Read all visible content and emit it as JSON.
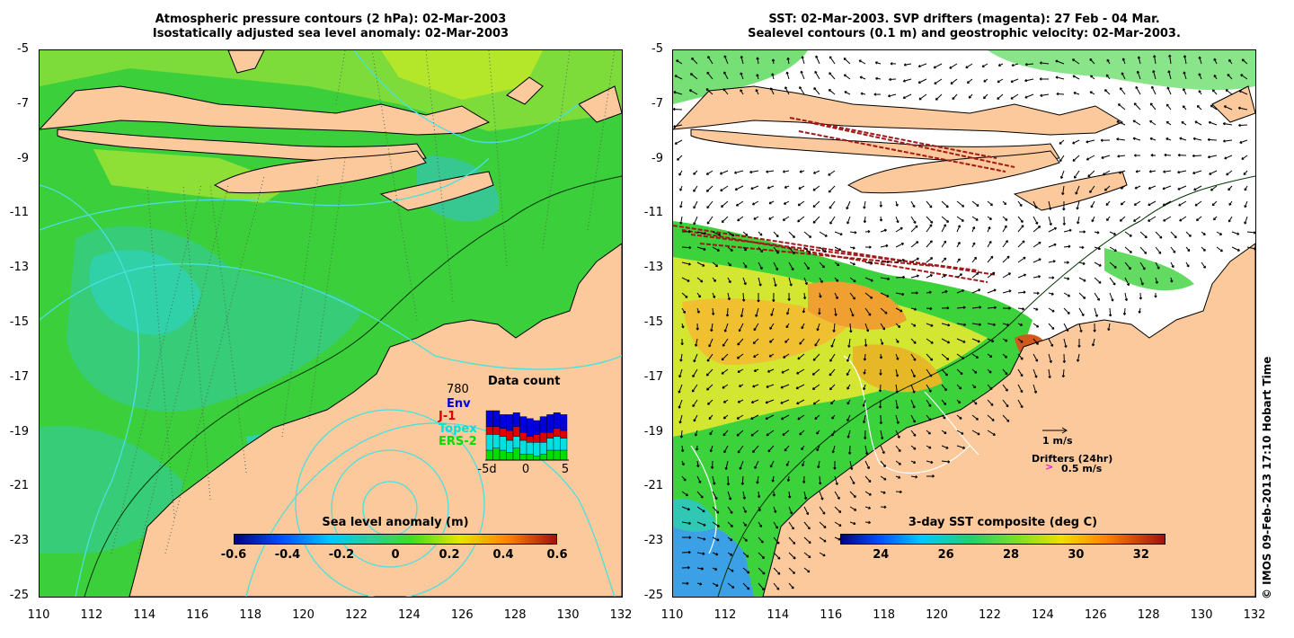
{
  "left": {
    "title_line1": "Atmospheric pressure contours (2 hPa): 02-Mar-2003",
    "title_line2": "Isostatically adjusted sea level anomaly: 02-Mar-2003",
    "colorbar_title": "Sea level anomaly (m)",
    "colorbar_ticks": [
      "-0.6",
      "-0.4",
      "-0.2",
      "0",
      "0.2",
      "0.4",
      "0.6"
    ],
    "data_count": {
      "title": "Data count",
      "total": "780",
      "legend": [
        "Env",
        "J-1",
        "Topex",
        "ERS-2"
      ],
      "legend_colors": [
        "#0000dd",
        "#dd0000",
        "#00e0e0",
        "#00dd00"
      ],
      "x_ticks": [
        "-5d",
        "0",
        "5"
      ],
      "bars": [
        [
          8,
          4,
          8,
          5
        ],
        [
          8,
          4,
          7,
          6
        ],
        [
          7,
          4,
          7,
          5
        ],
        [
          8,
          5,
          6,
          4
        ],
        [
          7,
          5,
          6,
          6
        ],
        [
          8,
          4,
          7,
          3
        ],
        [
          9,
          3,
          6,
          3
        ],
        [
          7,
          4,
          7,
          2
        ],
        [
          8,
          5,
          6,
          3
        ],
        [
          9,
          3,
          6,
          5
        ],
        [
          8,
          4,
          7,
          5
        ],
        [
          8,
          4,
          6,
          5
        ]
      ]
    }
  },
  "right": {
    "title_line1": "SST: 02-Mar-2003. SVP drifters (magenta): 27 Feb - 04 Mar.",
    "title_line2": "Sealevel contours (0.1 m) and geostrophic velocity: 02-Mar-2003.",
    "colorbar_title": "3-day SST composite (deg C)",
    "colorbar_ticks": [
      "24",
      "26",
      "28",
      "30",
      "32"
    ],
    "velocity_scale": "1 m/s",
    "drifters_label": "Drifters (24hr)",
    "drifters_scale": "0.5 m/s"
  },
  "axes": {
    "y_ticks": [
      "-5",
      "-7",
      "-9",
      "-11",
      "-13",
      "-15",
      "-17",
      "-19",
      "-21",
      "-23",
      "-25"
    ],
    "x_ticks": [
      "110",
      "112",
      "114",
      "116",
      "118",
      "120",
      "122",
      "124",
      "126",
      "128",
      "130",
      "132"
    ]
  },
  "credit": "© IMOS 09-Feb-2013 17:10 Hobart Time",
  "colors": {
    "land": "#fbc99b",
    "ocean_green": "#3cd23c",
    "ocean_teal": "#32d2a0",
    "sst_white": "#ffffff",
    "sst_orange": "#f0b428",
    "sst_yellow": "#d2e632",
    "sst_blue": "#3ca0e6",
    "pressure_contour": "#4ae0e0"
  }
}
